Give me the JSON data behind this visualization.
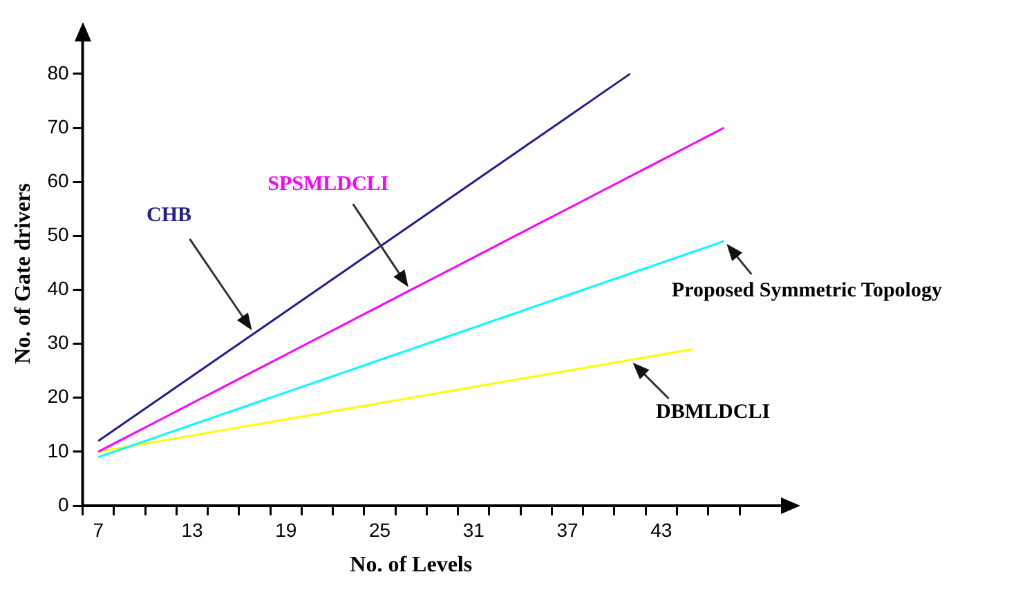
{
  "chart_data": {
    "type": "line",
    "xlabel": "No. of Levels",
    "ylabel": "No. of Gate drivers",
    "categories": [
      "7",
      null,
      null,
      "13",
      null,
      null,
      "19",
      null,
      null,
      "25",
      null,
      null,
      "31",
      null,
      null,
      "37",
      null,
      null,
      "43",
      null,
      null
    ],
    "series": [
      {
        "name": "CHB",
        "color": "#1f1f8f",
        "values": [
          12,
          16,
          20,
          24,
          28,
          32,
          36,
          40,
          44,
          48,
          52,
          56,
          60,
          64,
          68,
          72,
          76,
          80,
          null,
          null,
          null
        ]
      },
      {
        "name": "SPSMLDCLI",
        "color": "#ff00ff",
        "values": [
          10,
          13,
          16,
          19,
          22,
          25,
          28,
          31,
          34,
          37,
          40,
          43,
          46,
          49,
          52,
          55,
          58,
          61,
          64,
          67,
          70
        ]
      },
      {
        "name": "Proposed Symmetric Topology",
        "color": "#00ffff",
        "values": [
          9,
          11,
          13,
          15,
          17,
          19,
          21,
          23,
          25,
          27,
          29,
          31,
          33,
          35,
          37,
          39,
          41,
          43,
          45,
          47,
          49
        ]
      },
      {
        "name": "DBMLDCLI",
        "color": "#ffff00",
        "values": [
          10,
          11,
          12,
          13,
          14,
          15,
          16,
          17,
          18,
          19,
          20,
          21,
          22,
          23,
          24,
          25,
          26,
          27,
          28,
          29,
          null
        ]
      }
    ],
    "ylim": [
      0,
      86
    ],
    "yticks": [
      0,
      10,
      20,
      30,
      40,
      50,
      60,
      70,
      80
    ],
    "grid": false,
    "legend": false,
    "marker": "none",
    "line_style": "solid"
  }
}
